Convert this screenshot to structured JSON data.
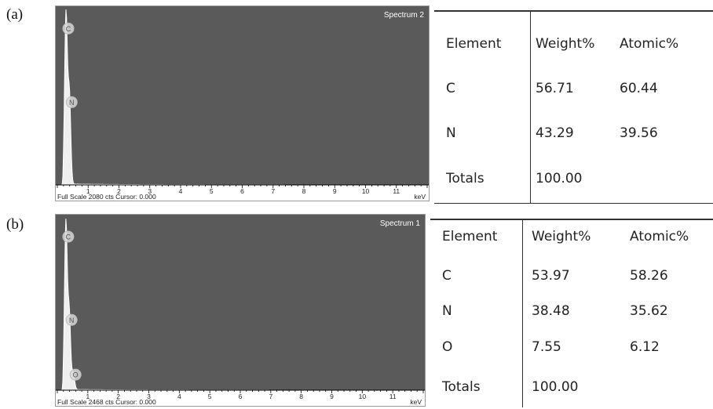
{
  "panels": [
    {
      "label": "(a)",
      "spectrum": {
        "name": "Spectrum 2",
        "footer_left": "Full Scale 2080 cts Cursor: 0.000",
        "footer_right": "keV"
      },
      "table": {
        "headers": [
          "Element",
          "Weight%",
          "Atomic%"
        ],
        "rows": [
          [
            "C",
            "56.71",
            "60.44"
          ],
          [
            "N",
            "43.29",
            "39.56"
          ],
          [
            "Totals",
            "100.00",
            ""
          ]
        ]
      }
    },
    {
      "label": "(b)",
      "spectrum": {
        "name": "Spectrum 1",
        "footer_left": "Full Scale 2468 cts Cursor: 0.000",
        "footer_right": "keV"
      },
      "table": {
        "headers": [
          "Element",
          "Weight%",
          "Atomic%"
        ],
        "rows": [
          [
            "C",
            "53.97",
            "58.26"
          ],
          [
            "N",
            "38.48",
            "35.62"
          ],
          [
            "O",
            "7.55",
            "6.12"
          ],
          [
            "Totals",
            "100.00",
            ""
          ]
        ]
      }
    }
  ],
  "chart_data": [
    {
      "type": "line",
      "title": "Spectrum 2",
      "xlabel": "keV",
      "xlim": [
        0,
        12
      ],
      "ylim": [
        0,
        2080
      ],
      "x_ticks": [
        "1",
        "2",
        "3",
        "4",
        "5",
        "6",
        "7",
        "8",
        "9",
        "10",
        "11"
      ],
      "full_scale_label": "Full Scale 2080 cts Cursor: 0.000",
      "peaks": [
        {
          "element": "C",
          "energy_kev": 0.28,
          "counts": 2080
        },
        {
          "element": "N",
          "energy_kev": 0.39,
          "counts": 1100
        }
      ],
      "background_color": "#5a5a5a",
      "line_color": "#ffffff"
    },
    {
      "type": "line",
      "title": "Spectrum 1",
      "xlabel": "keV",
      "xlim": [
        0,
        12
      ],
      "ylim": [
        0,
        2468
      ],
      "x_ticks": [
        "1",
        "2",
        "3",
        "4",
        "5",
        "6",
        "7",
        "8",
        "9",
        "10",
        "11"
      ],
      "full_scale_label": "Full Scale 2468 cts Cursor: 0.000",
      "peaks": [
        {
          "element": "C",
          "energy_kev": 0.28,
          "counts": 2468
        },
        {
          "element": "N",
          "energy_kev": 0.39,
          "counts": 1130
        },
        {
          "element": "O",
          "energy_kev": 0.52,
          "counts": 250
        }
      ],
      "background_color": "#5a5a5a",
      "line_color": "#ffffff"
    }
  ]
}
